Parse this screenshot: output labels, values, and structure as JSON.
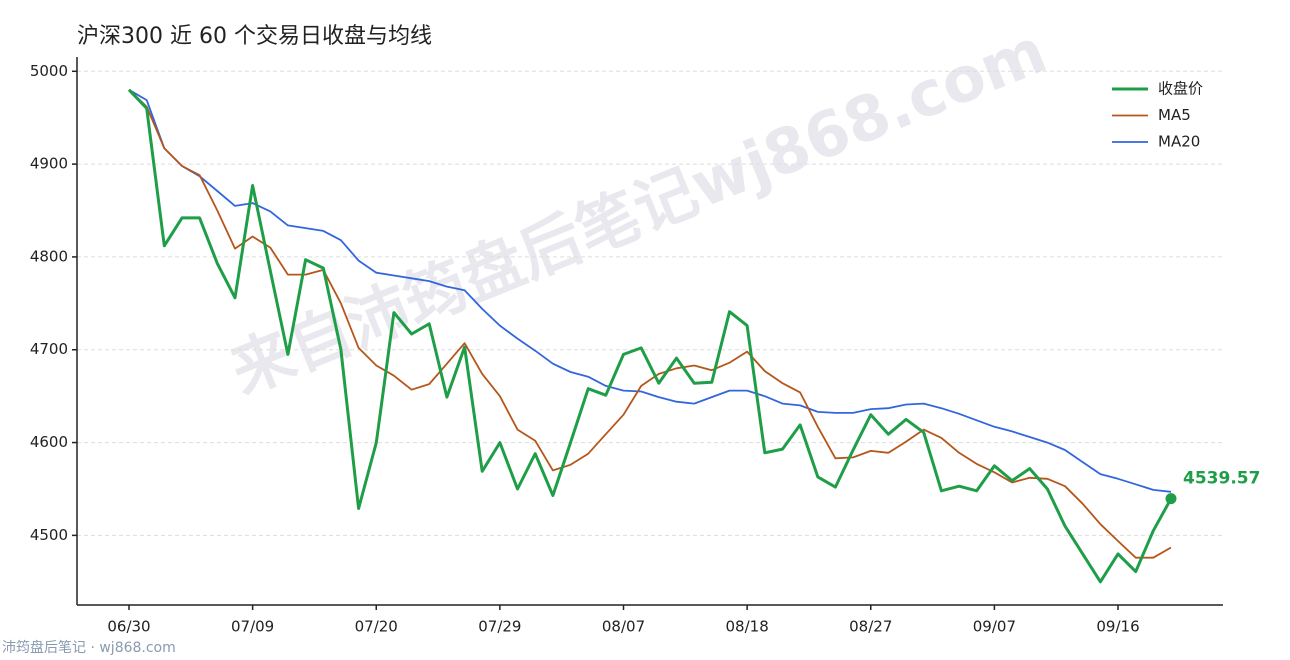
{
  "chart_data": {
    "type": "line",
    "title": "沪深300 近 60 个交易日收盘与均线",
    "watermark": "来自沛筠盘后笔记wj868.com",
    "footer": "沛筠盘后笔记 · wj868.com",
    "categories": [
      "06/30",
      null,
      null,
      null,
      null,
      null,
      null,
      "07/09",
      null,
      null,
      null,
      null,
      null,
      null,
      "07/20",
      null,
      null,
      null,
      null,
      null,
      null,
      "07/29",
      null,
      null,
      null,
      null,
      null,
      null,
      "08/07",
      null,
      null,
      null,
      null,
      null,
      null,
      "08/18",
      null,
      null,
      null,
      null,
      null,
      null,
      "08/27",
      null,
      null,
      null,
      null,
      null,
      null,
      "09/07",
      null,
      null,
      null,
      null,
      null,
      null,
      "09/16",
      null,
      null,
      null
    ],
    "series": [
      {
        "name": "收盘价",
        "color": "#1f9e48",
        "values": [
          4980,
          4960,
          4812,
          4842,
          4842,
          4793,
          4756,
          4877,
          4785,
          4695,
          4797,
          4788,
          4700,
          4529,
          4600,
          4740,
          4717,
          4728,
          4649,
          4703,
          4569,
          4600,
          4550,
          4588,
          4543,
          4600,
          4658,
          4651,
          4695,
          4702,
          4664,
          4691,
          4664,
          4665,
          4741,
          4726,
          4589,
          4593,
          4619,
          4563,
          4552,
          4592,
          4630,
          4609,
          4625,
          4611,
          4548,
          4553,
          4548,
          4575,
          4559,
          4572,
          4550,
          4510,
          4480,
          4450,
          4480,
          4461,
          4505,
          4539.57
        ]
      },
      {
        "name": "MA5",
        "color": "#b5561a",
        "values": [
          4980,
          4962,
          4917,
          4898,
          4888,
          4850,
          4809,
          4822,
          4810,
          4781,
          4781,
          4786,
          4750,
          4702,
          4683,
          4672,
          4657,
          4663,
          4685,
          4707,
          4674,
          4650,
          4614,
          4602,
          4570,
          4576,
          4588,
          4609,
          4630,
          4661,
          4674,
          4680,
          4683,
          4678,
          4686,
          4698,
          4677,
          4664,
          4654,
          4617,
          4583,
          4584,
          4591,
          4589,
          4601,
          4614,
          4605,
          4589,
          4577,
          4568,
          4557,
          4562,
          4561,
          4553,
          4534,
          4512,
          4494,
          4476,
          4476,
          4487
        ]
      },
      {
        "name": "MA20",
        "color": "#3366dd",
        "values": [
          4980,
          4969,
          4917,
          4898,
          4887,
          4871,
          4855,
          4858,
          4849,
          4834,
          4831,
          4828,
          4818,
          4796,
          4783,
          4780,
          4777,
          4774,
          4768,
          4764,
          4744,
          4726,
          4712,
          4699,
          4685,
          4676,
          4671,
          4661,
          4656,
          4655,
          4649,
          4644,
          4642,
          4649,
          4656,
          4656,
          4650,
          4642,
          4640,
          4633,
          4632,
          4632,
          4636,
          4637,
          4641,
          4642,
          4637,
          4631,
          4624,
          4617,
          4612,
          4606,
          4600,
          4592,
          4579,
          4566,
          4561,
          4555,
          4549,
          4547
        ]
      }
    ],
    "ylim": [
      4425,
      5010
    ],
    "yticks": [
      4500,
      4600,
      4700,
      4800,
      4900,
      5000
    ],
    "grid": true,
    "legend": "upper right"
  }
}
